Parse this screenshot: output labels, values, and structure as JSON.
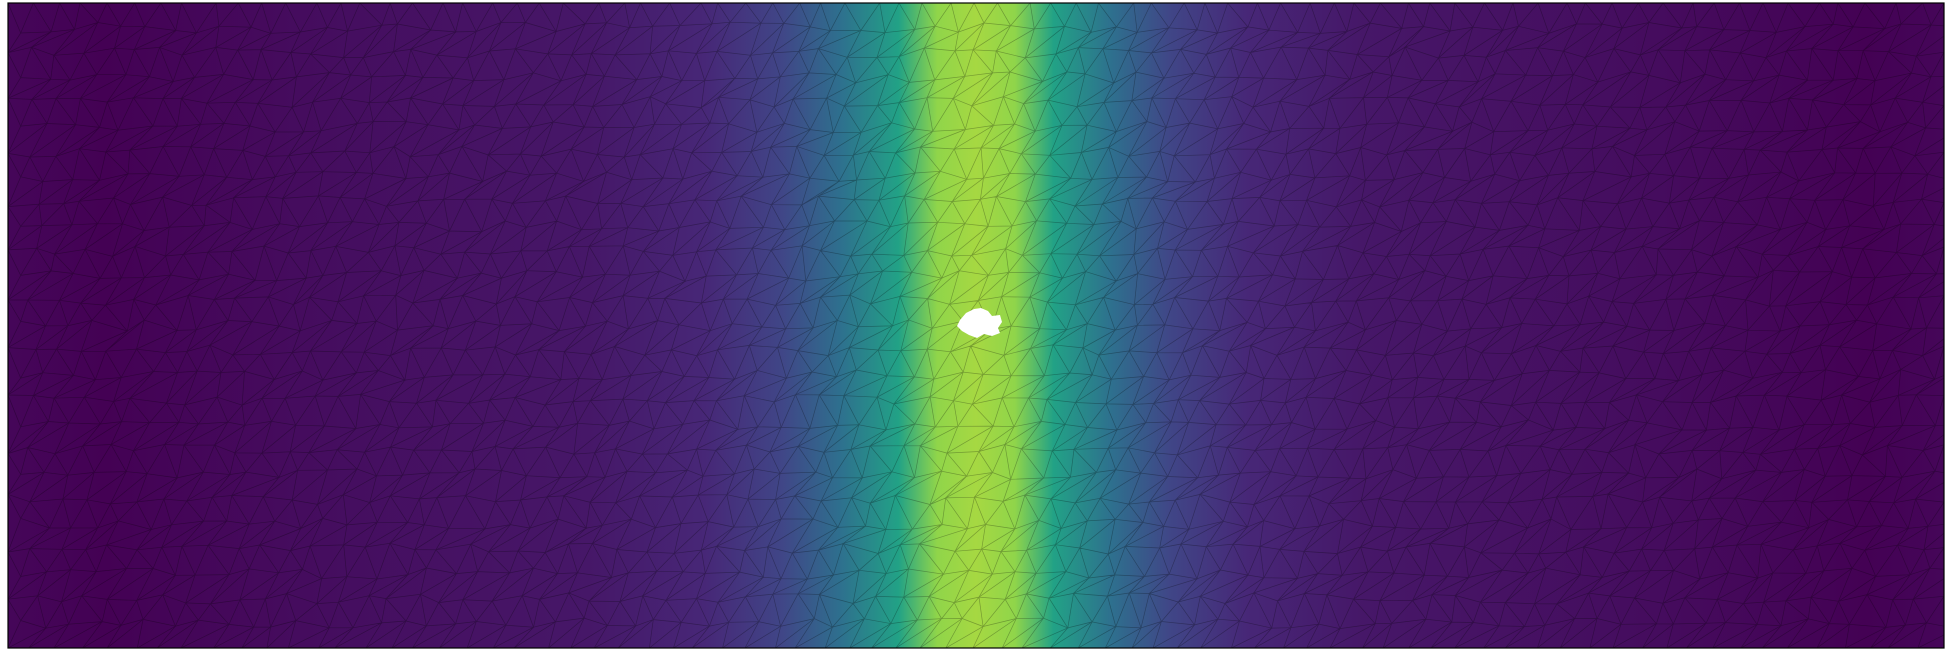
{
  "chart_data": {
    "type": "heatmap",
    "title": "",
    "xlabel": "",
    "ylabel": "",
    "colormap": "viridis",
    "colorbar": false,
    "grid": false,
    "mesh": "triangular",
    "field_profile": [
      {
        "x": 0.0,
        "value": 0.02
      },
      {
        "x": 0.05,
        "value": 0.0
      },
      {
        "x": 0.15,
        "value": 0.04
      },
      {
        "x": 0.3,
        "value": 0.08
      },
      {
        "x": 0.36,
        "value": 0.14
      },
      {
        "x": 0.4,
        "value": 0.26
      },
      {
        "x": 0.43,
        "value": 0.46
      },
      {
        "x": 0.46,
        "value": 0.72
      },
      {
        "x": 0.48,
        "value": 0.9
      },
      {
        "x": 0.5,
        "value": 0.92
      },
      {
        "x": 0.52,
        "value": 0.9
      },
      {
        "x": 0.54,
        "value": 0.72
      },
      {
        "x": 0.57,
        "value": 0.46
      },
      {
        "x": 0.6,
        "value": 0.26
      },
      {
        "x": 0.64,
        "value": 0.14
      },
      {
        "x": 0.7,
        "value": 0.08
      },
      {
        "x": 0.85,
        "value": 0.04
      },
      {
        "x": 0.96,
        "value": 0.0
      },
      {
        "x": 1.0,
        "value": 0.02
      }
    ],
    "features": [
      "hole"
    ],
    "colors": {
      "edge": "#000000",
      "frame": "#000000",
      "hole": "#ffffff",
      "background": "#ffffff"
    }
  }
}
